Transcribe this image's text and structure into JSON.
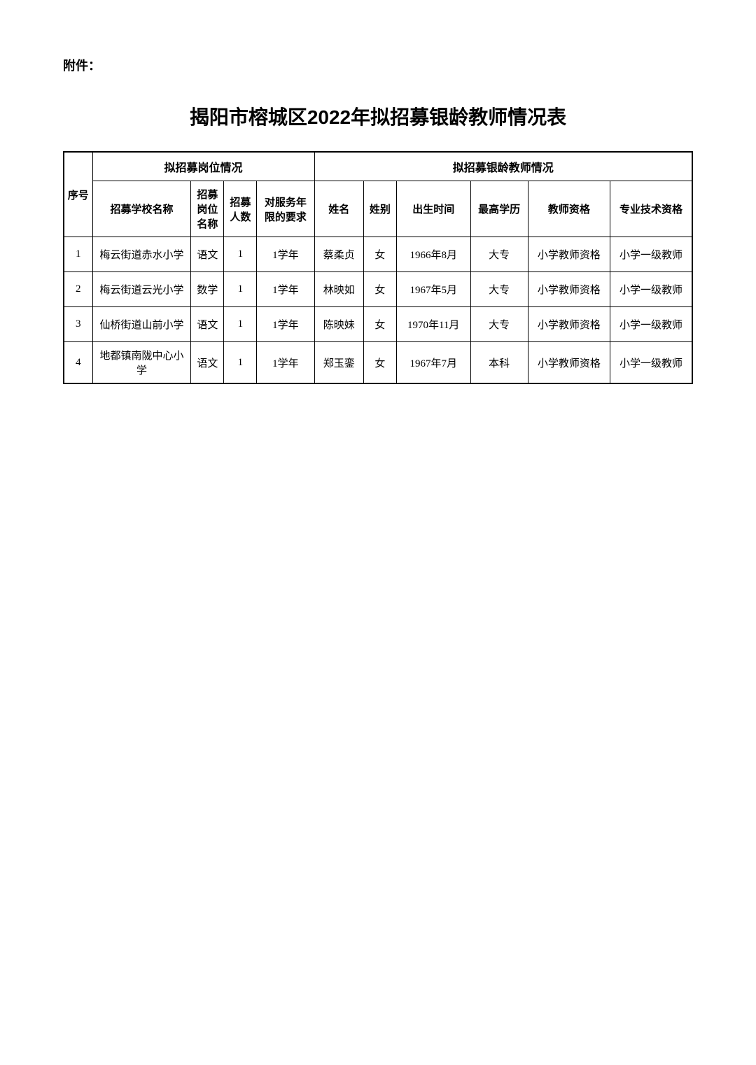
{
  "attachment_label": "附件：",
  "title": "揭阳市榕城区2022年拟招募银龄教师情况表",
  "headers": {
    "seq": "序号",
    "position_group": "拟招募岗位情况",
    "teacher_group": "拟招募银龄教师情况",
    "school": "招募学校名称",
    "job_name": "招募岗位名称",
    "count": "招募人数",
    "service_years": "对服务年限的要求",
    "name": "姓名",
    "gender": "姓别",
    "birth": "出生时间",
    "education": "最高学历",
    "qualification": "教师资格",
    "professional": "专业技术资格"
  },
  "rows": [
    {
      "seq": "1",
      "school": "梅云街道赤水小学",
      "job": "语文",
      "count": "1",
      "years": "1学年",
      "name": "蔡柔贞",
      "gender": "女",
      "birth": "1966年8月",
      "education": "大专",
      "qualification": "小学教师资格",
      "professional": "小学一级教师"
    },
    {
      "seq": "2",
      "school": "梅云街道云光小学",
      "job": "数学",
      "count": "1",
      "years": "1学年",
      "name": "林映如",
      "gender": "女",
      "birth": "1967年5月",
      "education": "大专",
      "qualification": "小学教师资格",
      "professional": "小学一级教师"
    },
    {
      "seq": "3",
      "school": "仙桥街道山前小学",
      "job": "语文",
      "count": "1",
      "years": "1学年",
      "name": "陈映妹",
      "gender": "女",
      "birth": "1970年11月",
      "education": "大专",
      "qualification": "小学教师资格",
      "professional": "小学一级教师"
    },
    {
      "seq": "4",
      "school": "地都镇南陇中心小学",
      "job": "语文",
      "count": "1",
      "years": "1学年",
      "name": "郑玉銮",
      "gender": "女",
      "birth": "1967年7月",
      "education": "本科",
      "qualification": "小学教师资格",
      "professional": "小学一级教师"
    }
  ]
}
